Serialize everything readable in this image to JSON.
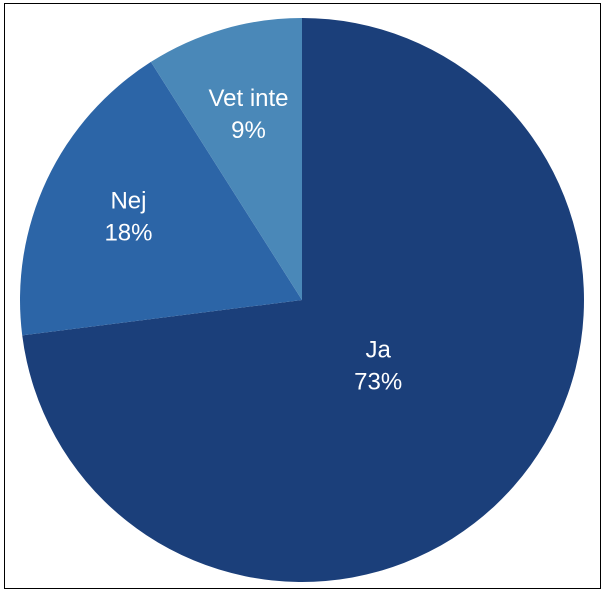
{
  "chart_data": {
    "type": "pie",
    "title": "",
    "start_angle_deg": 0,
    "direction": "clockwise",
    "slices": [
      {
        "label": "Ja",
        "value": 73,
        "value_label": "73%",
        "color": "#1b3f7a"
      },
      {
        "label": "Nej",
        "value": 18,
        "value_label": "18%",
        "color": "#2c65a7"
      },
      {
        "label": "Vet inte",
        "value": 9,
        "value_label": "9%",
        "color": "#4a88b8"
      }
    ]
  }
}
